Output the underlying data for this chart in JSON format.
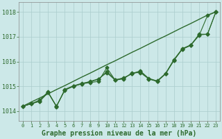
{
  "xlabel": "Graphe pression niveau de la mer (hPa)",
  "background_color": "#cce8e8",
  "grid_color": "#aacccc",
  "line_color": "#2d6a2d",
  "xlim": [
    -0.5,
    23.5
  ],
  "ylim": [
    1013.6,
    1018.4
  ],
  "yticks": [
    1014,
    1015,
    1016,
    1017,
    1018
  ],
  "xticks": [
    0,
    1,
    2,
    3,
    4,
    5,
    6,
    7,
    8,
    9,
    10,
    11,
    12,
    13,
    14,
    15,
    16,
    17,
    18,
    19,
    20,
    21,
    22,
    23
  ],
  "smooth_line": [
    1014.2,
    1014.37,
    1014.53,
    1014.7,
    1014.87,
    1015.03,
    1015.2,
    1015.37,
    1015.53,
    1015.7,
    1015.87,
    1016.03,
    1016.2,
    1016.37,
    1016.53,
    1016.7,
    1016.87,
    1017.03,
    1017.2,
    1017.37,
    1017.53,
    1017.7,
    1017.87,
    1018.0
  ],
  "series": [
    [
      1014.2,
      1014.3,
      1014.4,
      1014.75,
      1014.2,
      1014.85,
      1015.0,
      1015.1,
      1015.15,
      1015.2,
      1015.75,
      1015.25,
      1015.3,
      1015.55,
      1015.55,
      1015.3,
      1015.2,
      1015.5,
      1016.05,
      1016.5,
      1016.65,
      1017.1,
      1017.1,
      1018.0
    ],
    [
      1014.2,
      1014.3,
      1014.4,
      1014.75,
      1014.2,
      1014.85,
      1015.0,
      1015.1,
      1015.2,
      1015.3,
      1015.55,
      1015.25,
      1015.35,
      1015.5,
      1015.6,
      1015.3,
      1015.2,
      1015.5,
      1016.05,
      1016.5,
      1016.65,
      1017.05,
      1017.85,
      1018.0
    ],
    [
      1014.2,
      1014.3,
      1014.45,
      1014.78,
      1014.18,
      1014.88,
      1015.02,
      1015.12,
      1015.18,
      1015.28,
      1015.6,
      1015.27,
      1015.32,
      1015.52,
      1015.62,
      1015.32,
      1015.22,
      1015.52,
      1016.08,
      1016.52,
      1016.67,
      1017.07,
      1017.1,
      1018.0
    ]
  ],
  "marker": "D",
  "markersize": 2.5,
  "linewidth": 0.8,
  "smooth_linewidth": 1.0,
  "xlabel_fontsize": 7,
  "ytick_fontsize": 6,
  "xtick_fontsize": 5
}
